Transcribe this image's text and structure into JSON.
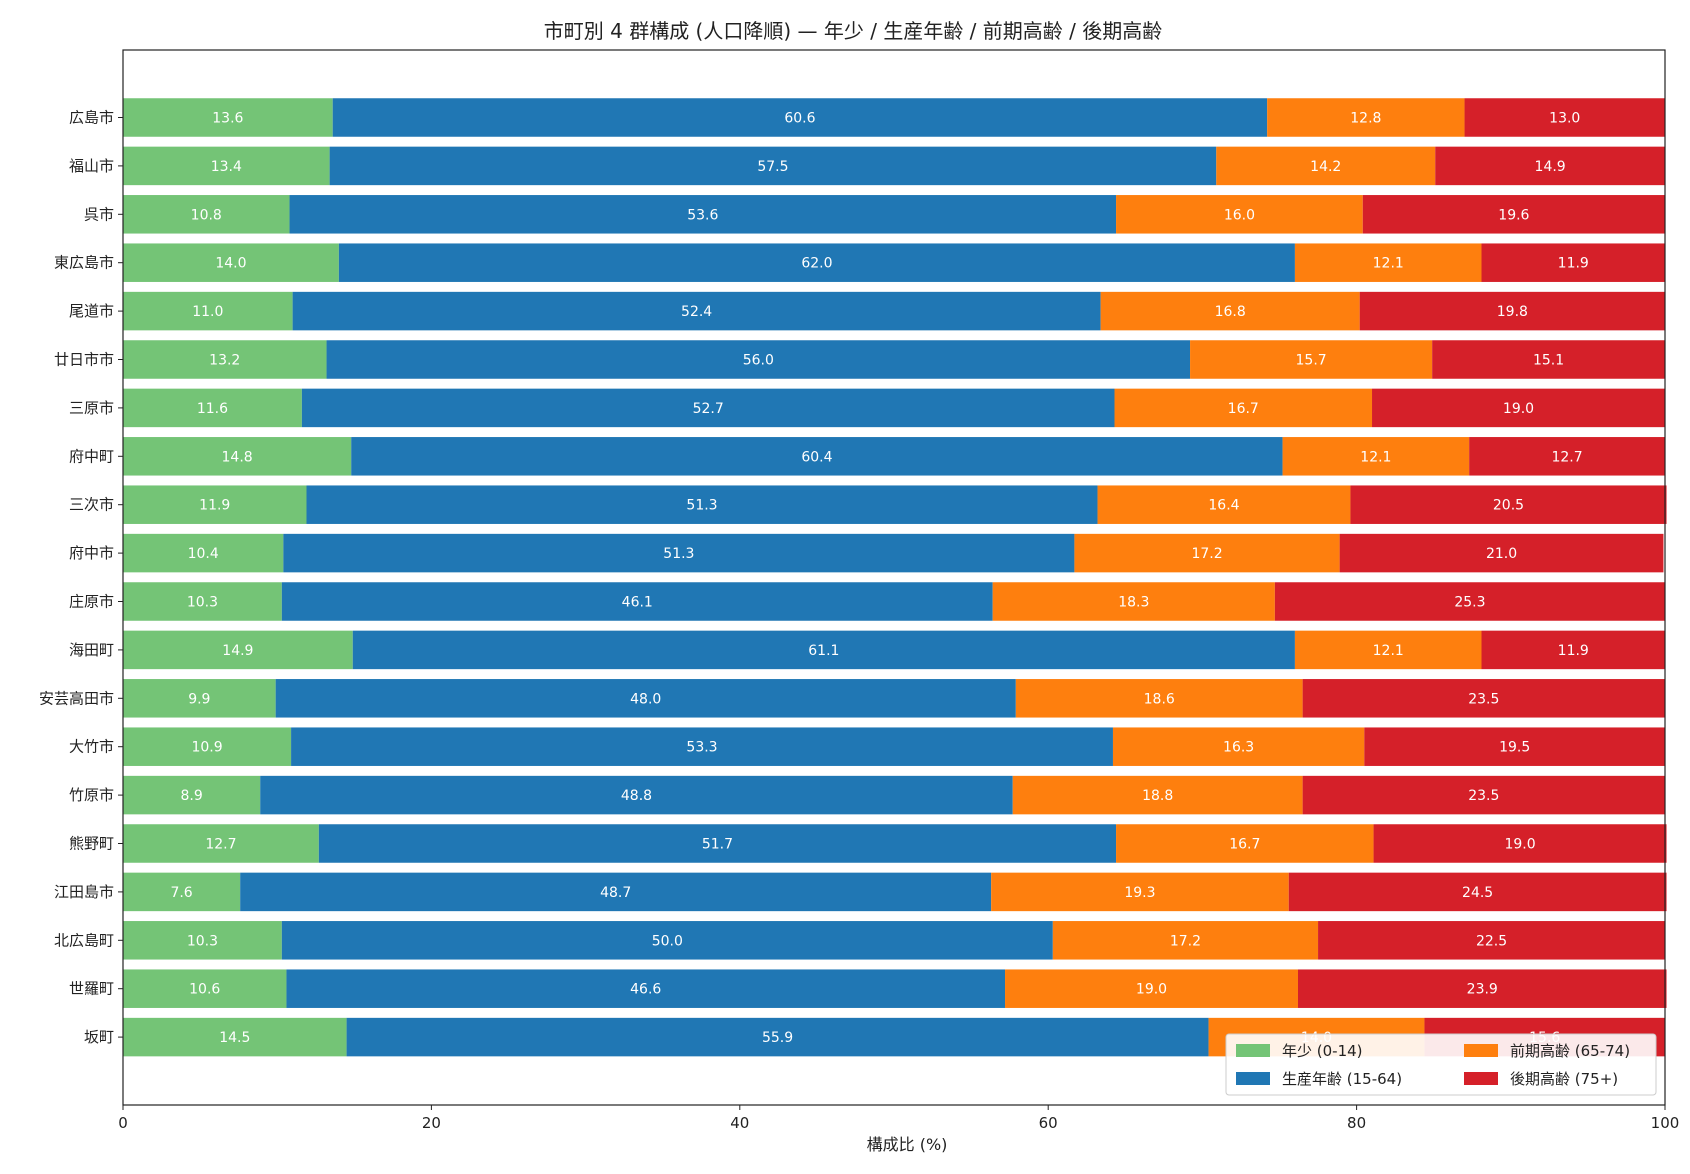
{
  "chart_data": {
    "type": "bar",
    "orientation": "horizontal",
    "stacked": true,
    "title": "市町別 4 群構成 (人口降順) — 年少 / 生産年齢 / 前期高齢 / 後期高齢",
    "xlabel": "構成比 (%)",
    "ylabel": "",
    "xlim": [
      0,
      100
    ],
    "xticks": [
      "0",
      "20",
      "40",
      "60",
      "80",
      "100"
    ],
    "grid": false,
    "legend_position": "lower-right",
    "categories": [
      "広島市",
      "福山市",
      "呉市",
      "東広島市",
      "尾道市",
      "廿日市市",
      "三原市",
      "府中町",
      "三次市",
      "府中市",
      "庄原市",
      "海田町",
      "安芸高田市",
      "大竹市",
      "竹原市",
      "熊野町",
      "江田島市",
      "北広島町",
      "世羅町",
      "坂町"
    ],
    "series": [
      {
        "name": "年少 (0-14)",
        "color": "#74c476",
        "values": [
          13.6,
          13.4,
          10.8,
          14.0,
          11.0,
          13.2,
          11.6,
          14.8,
          11.9,
          10.4,
          10.3,
          14.9,
          9.9,
          10.9,
          8.9,
          12.7,
          7.6,
          10.3,
          10.6,
          14.5
        ]
      },
      {
        "name": "生産年齢 (15-64)",
        "color": "#2077b4",
        "values": [
          60.6,
          57.5,
          53.6,
          62.0,
          52.4,
          56.0,
          52.7,
          60.4,
          51.3,
          51.3,
          46.1,
          61.1,
          48.0,
          53.3,
          48.8,
          51.7,
          48.7,
          50.0,
          46.6,
          55.9
        ]
      },
      {
        "name": "前期高齢 (65-74)",
        "color": "#fe7f0e",
        "values": [
          12.8,
          14.2,
          16.0,
          12.1,
          16.8,
          15.7,
          16.7,
          12.1,
          16.4,
          17.2,
          18.3,
          12.1,
          18.6,
          16.3,
          18.8,
          16.7,
          19.3,
          17.2,
          19.0,
          14.0
        ]
      },
      {
        "name": "後期高齢 (75+)",
        "color": "#d52029",
        "values": [
          13.0,
          14.9,
          19.6,
          11.9,
          19.8,
          15.1,
          19.0,
          12.7,
          20.5,
          21.0,
          25.3,
          11.9,
          23.5,
          19.5,
          23.5,
          19.0,
          24.5,
          22.5,
          23.9,
          15.6
        ]
      }
    ]
  }
}
